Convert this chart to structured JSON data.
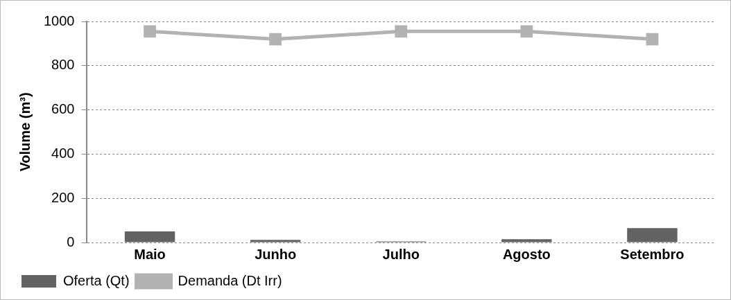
{
  "chart_data": {
    "type": "bar",
    "ylabel": "Volume (m³)",
    "categories": [
      "Maio",
      "Junho",
      "Julho",
      "Agosto",
      "Setembro"
    ],
    "series": [
      {
        "name": "Oferta (Qt)",
        "color": "#636363",
        "values": [
          50,
          12,
          5,
          15,
          65
        ]
      },
      {
        "name": "Demanda (Dt Irr)",
        "type": "line",
        "color": "#b2b2b2",
        "marker": "square",
        "values": [
          955,
          920,
          955,
          955,
          920
        ]
      }
    ],
    "ylim": [
      0,
      1000
    ],
    "yticks": [
      0,
      200,
      400,
      600,
      800,
      1000
    ],
    "grid": "y",
    "legend": "bottom"
  }
}
